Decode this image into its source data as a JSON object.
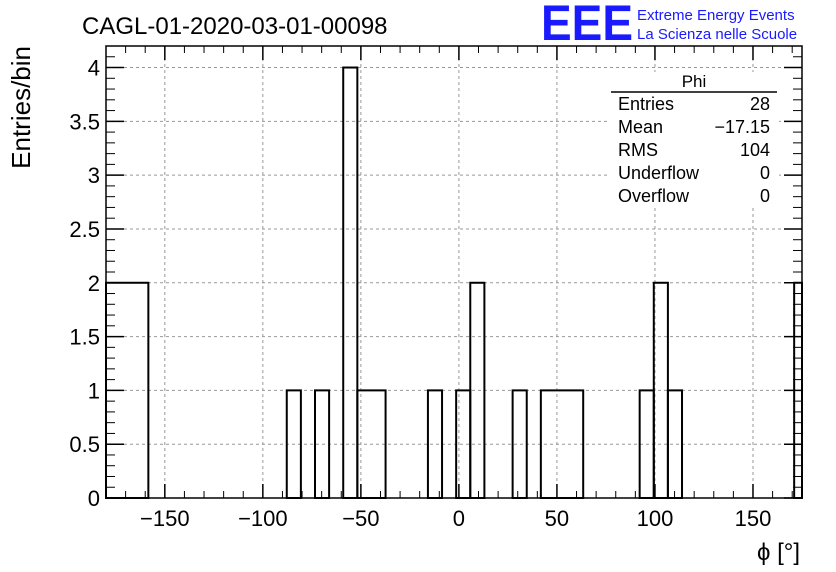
{
  "chart_data": {
    "type": "histogram",
    "title": "CAGL-01-2020-03-01-00098",
    "xlabel": "ϕ [°]",
    "ylabel": "Entries/bin",
    "xlim": [
      -180,
      175
    ],
    "ylim": [
      0,
      4.2
    ],
    "grid": true,
    "bin_width": 7.2,
    "x_ticks": [
      -150,
      -100,
      -50,
      0,
      50,
      100,
      150
    ],
    "x_tick_labels": [
      "−150",
      "−100",
      "−50",
      "0",
      "50",
      "100",
      "150"
    ],
    "y_ticks": [
      0,
      0.5,
      1,
      1.5,
      2,
      2.5,
      3,
      3.5,
      4
    ],
    "y_tick_labels": [
      "0",
      "0.5",
      "1",
      "1.5",
      "2",
      "2.5",
      "3",
      "3.5",
      "4"
    ],
    "bins": [
      {
        "x0": -180,
        "x1": -158.4,
        "count": 2
      },
      {
        "x0": -87.8,
        "x1": -80.6,
        "count": 1
      },
      {
        "x0": -73.4,
        "x1": -66.2,
        "count": 1
      },
      {
        "x0": -59,
        "x1": -51.8,
        "count": 4
      },
      {
        "x0": -51.8,
        "x1": -37.4,
        "count": 1
      },
      {
        "x0": -15.8,
        "x1": -8.6,
        "count": 1
      },
      {
        "x0": -1.4,
        "x1": 5.8,
        "count": 1
      },
      {
        "x0": 5.8,
        "x1": 13,
        "count": 2
      },
      {
        "x0": 27.4,
        "x1": 34.6,
        "count": 1
      },
      {
        "x0": 41.8,
        "x1": 63.4,
        "count": 1
      },
      {
        "x0": 92.2,
        "x1": 99.4,
        "count": 1
      },
      {
        "x0": 99.4,
        "x1": 106.6,
        "count": 2
      },
      {
        "x0": 106.6,
        "x1": 113.8,
        "count": 1
      },
      {
        "x0": 171,
        "x1": 175,
        "count": 2
      }
    ]
  },
  "stats_box": {
    "title": "Phi",
    "rows": [
      {
        "label": "Entries",
        "value": "28"
      },
      {
        "label": "Mean",
        "value": "−17.15"
      },
      {
        "label": "RMS",
        "value": "104"
      },
      {
        "label": "Underflow",
        "value": "0"
      },
      {
        "label": "Overflow",
        "value": "0"
      }
    ]
  },
  "logo": {
    "mark": "EEE",
    "line1": "Extreme Energy Events",
    "line2": "La Scienza nelle Scuole",
    "color": "#1a1aff"
  }
}
